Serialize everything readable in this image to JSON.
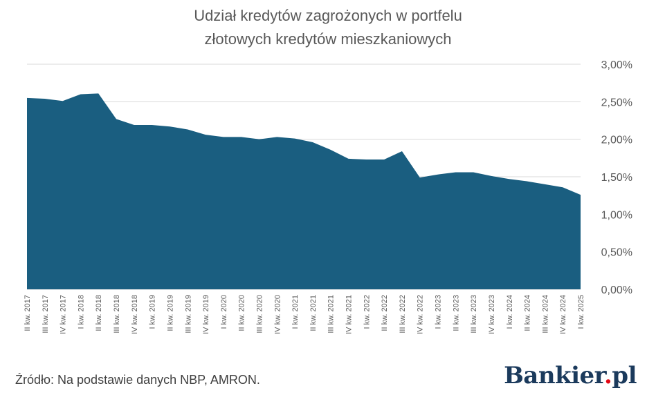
{
  "chart_data": {
    "type": "area",
    "title_lines": [
      "Udział kredytów zagrożonych w portfelu",
      "złotowych kredytów mieszkaniowych"
    ],
    "categories": [
      "II kw. 2017",
      "III kw. 2017",
      "IV kw. 2017",
      "I kw. 2018",
      "II kw. 2018",
      "III kw. 2018",
      "IV kw. 2018",
      "I kw. 2019",
      "II kw. 2019",
      "III kw. 2019",
      "IV kw. 2019",
      "I kw. 2020",
      "II kw. 2020",
      "III kw. 2020",
      "IV kw. 2020",
      "I kw. 2021",
      "II kw. 2021",
      "III kw. 2021",
      "IV kw. 2021",
      "I kw. 2022",
      "II kw. 2022",
      "III kw. 2022",
      "IV kw. 2022",
      "I kw. 2023",
      "II kw. 2023",
      "III kw. 2023",
      "IV kw. 2023",
      "I kw. 2024",
      "II kw. 2024",
      "III kw. 2024",
      "IV kw. 2024",
      "I kw. 2025"
    ],
    "values": [
      2.55,
      2.54,
      2.51,
      2.6,
      2.61,
      2.27,
      2.19,
      2.19,
      2.17,
      2.13,
      2.06,
      2.03,
      2.03,
      2.0,
      2.03,
      2.01,
      1.96,
      1.86,
      1.74,
      1.73,
      1.73,
      1.84,
      1.49,
      1.53,
      1.56,
      1.56,
      1.51,
      1.47,
      1.44,
      1.4,
      1.36,
      1.26
    ],
    "y_ticks": [
      "0,00%",
      "0,50%",
      "1,00%",
      "1,50%",
      "2,00%",
      "2,50%",
      "3,00%"
    ],
    "ylim": [
      0,
      3
    ],
    "y_axis_side": "right",
    "grid": true,
    "fill_color": "#1a5e80"
  },
  "source": "Źródło: Na podstawie danych NBP, AMRON.",
  "brand": {
    "name": "Bankier",
    "dot": ".",
    "suffix": "pl"
  }
}
